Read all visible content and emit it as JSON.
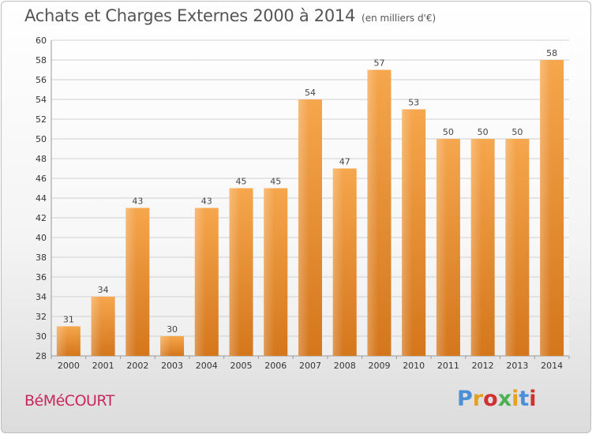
{
  "header": {
    "title": "Achats et Charges Externes 2000 à 2014",
    "subtitle": "(en milliers d'€)"
  },
  "footer": {
    "city": "BéMéCOURT",
    "logo": {
      "text": "Proxiti",
      "colors": [
        "#4a90d9",
        "#e8a020",
        "#d03030",
        "#4ab050",
        "#e8a020",
        "#4a90d9",
        "#d03030"
      ]
    }
  },
  "chart_data": {
    "type": "bar",
    "title": "Achats et Charges Externes 2000 à 2014",
    "subtitle": "(en milliers d'€)",
    "categories": [
      "2000",
      "2001",
      "2002",
      "2003",
      "2004",
      "2005",
      "2006",
      "2007",
      "2008",
      "2009",
      "2010",
      "2011",
      "2012",
      "2013",
      "2014"
    ],
    "values": [
      31,
      34,
      43,
      30,
      43,
      45,
      45,
      54,
      47,
      57,
      53,
      50,
      50,
      50,
      58
    ],
    "data_labels": [
      "31",
      "34",
      "43",
      "30",
      "43",
      "45",
      "45",
      "54",
      "47",
      "57",
      "53",
      "50",
      "50",
      "50",
      "58"
    ],
    "ylim": [
      28,
      60
    ],
    "yticks": [
      28,
      30,
      32,
      34,
      36,
      38,
      40,
      42,
      44,
      46,
      48,
      50,
      52,
      54,
      56,
      58,
      60
    ],
    "ytick_labels": [
      "28",
      "30",
      "32",
      "34",
      "36",
      "38",
      "40",
      "42",
      "44",
      "46",
      "48",
      "50",
      "52",
      "54",
      "56",
      "58",
      "60"
    ],
    "grid": true,
    "bar_color": "#f0a040",
    "bar_color_dark": "#d97a1f"
  }
}
